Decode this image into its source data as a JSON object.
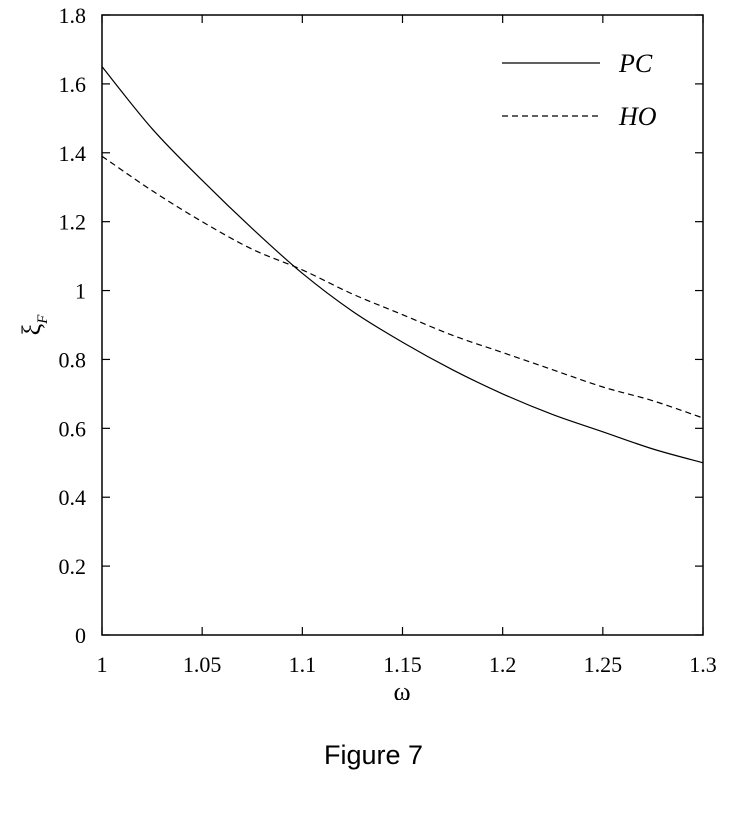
{
  "figure_caption": "Figure 7",
  "chart_data": {
    "type": "line",
    "xlabel": "ω",
    "ylabel": {
      "base": "ξ",
      "subscript": "F"
    },
    "xlim": [
      1,
      1.3
    ],
    "ylim": [
      0,
      1.8
    ],
    "x_ticks": [
      "1",
      "1.05",
      "1.1",
      "1.15",
      "1.2",
      "1.25",
      "1.3"
    ],
    "y_ticks": [
      "0",
      "0.2",
      "0.4",
      "0.6",
      "0.8",
      "1",
      "1.2",
      "1.4",
      "1.6",
      "1.8"
    ],
    "grid": false,
    "legend_position": "top-right",
    "series": [
      {
        "name": "PC",
        "style": "solid",
        "x": [
          1.0,
          1.025,
          1.05,
          1.075,
          1.1,
          1.125,
          1.15,
          1.175,
          1.2,
          1.225,
          1.25,
          1.275,
          1.3
        ],
        "y": [
          1.65,
          1.47,
          1.32,
          1.18,
          1.05,
          0.94,
          0.85,
          0.77,
          0.7,
          0.64,
          0.59,
          0.54,
          0.5
        ]
      },
      {
        "name": "HO",
        "style": "dashed",
        "x": [
          1.0,
          1.025,
          1.05,
          1.075,
          1.1,
          1.125,
          1.15,
          1.175,
          1.2,
          1.225,
          1.25,
          1.275,
          1.3
        ],
        "y": [
          1.39,
          1.29,
          1.2,
          1.12,
          1.06,
          0.99,
          0.93,
          0.87,
          0.82,
          0.77,
          0.72,
          0.68,
          0.63
        ]
      }
    ]
  }
}
